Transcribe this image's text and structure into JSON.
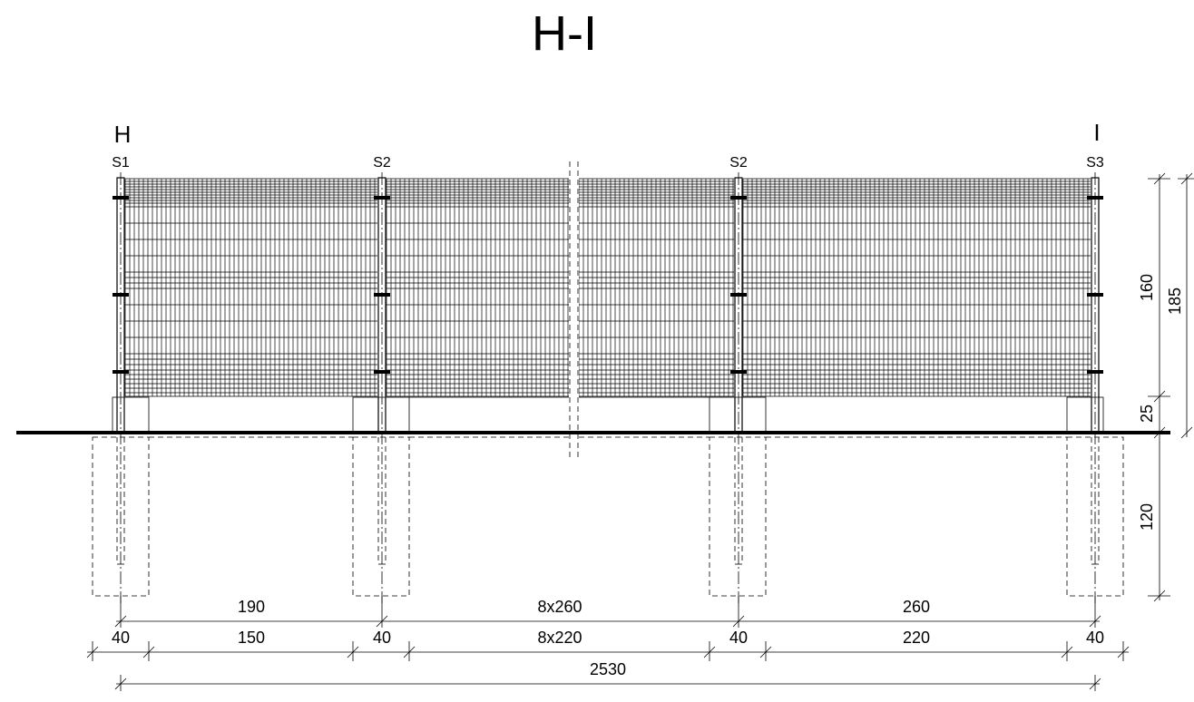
{
  "title": "H-I",
  "axes": {
    "left": "H",
    "right": "I"
  },
  "posts": [
    {
      "type": "S1"
    },
    {
      "type": "S2"
    },
    {
      "type": "S2"
    },
    {
      "type": "S3"
    }
  ],
  "dimensions": {
    "vertical": {
      "panel_height": "160",
      "total_height": "185",
      "plinth_height": "25",
      "foundation_depth": "120"
    },
    "row1": [
      "190",
      "8x260",
      "260"
    ],
    "row2": [
      "40",
      "150",
      "40",
      "8x220",
      "40",
      "220",
      "40"
    ],
    "total": "2530"
  }
}
